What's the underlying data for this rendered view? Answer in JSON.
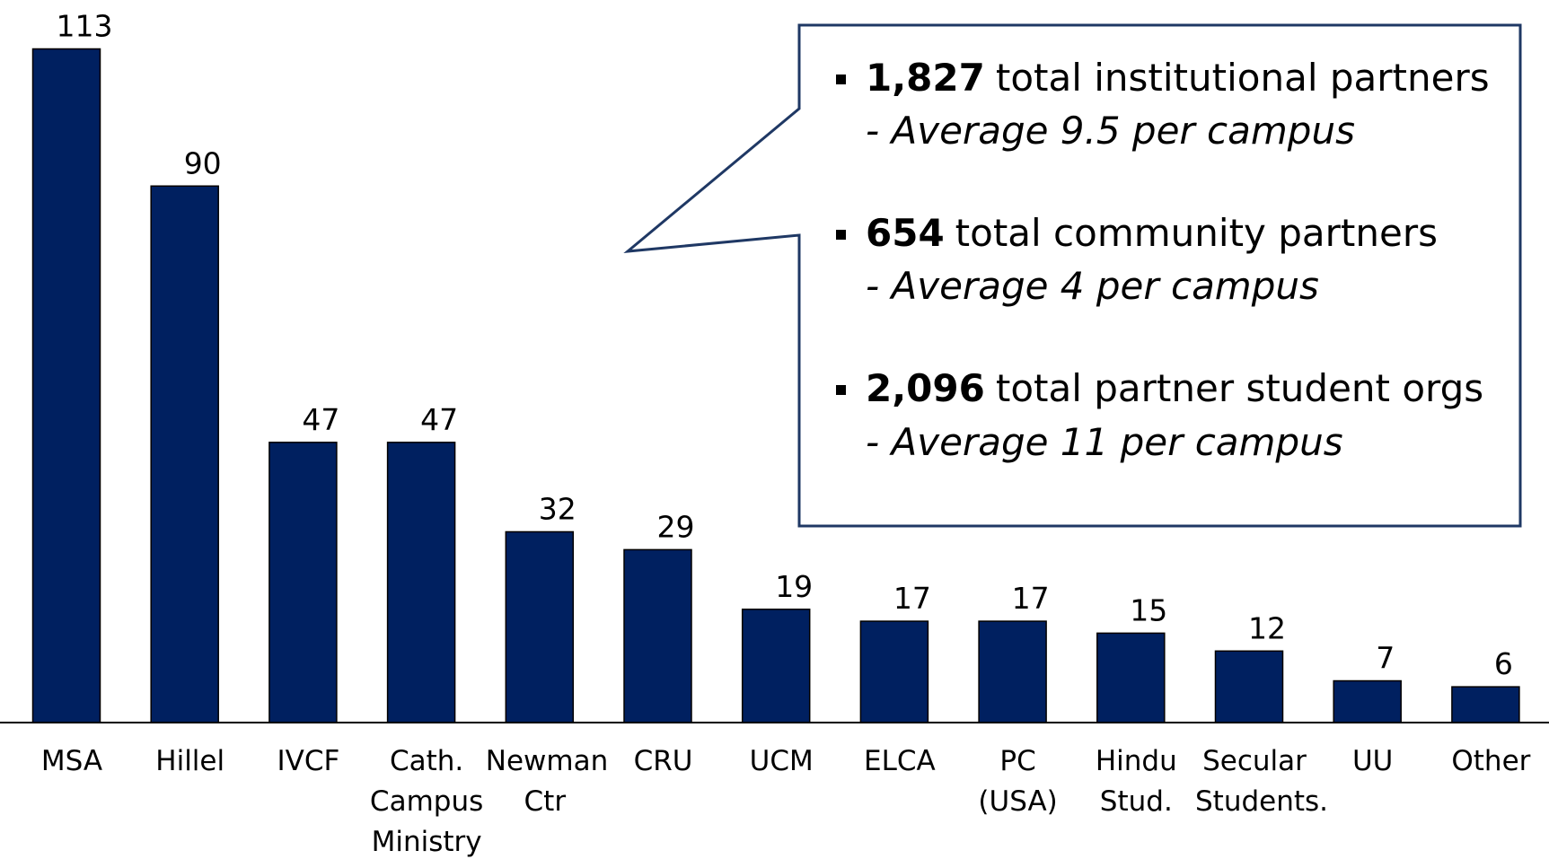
{
  "chart_data": {
    "type": "bar",
    "categories": [
      "MSA",
      "Hillel",
      "IVCF",
      "Cath.\nCampus\nMinistry",
      "Newman\nCtr",
      "CRU",
      "UCM",
      "ELCA",
      "PC\n(USA)",
      "Hindu\nStud.",
      "Secular\nStudents.",
      "UU",
      "Other"
    ],
    "values": [
      113,
      90,
      47,
      47,
      32,
      29,
      19,
      17,
      17,
      15,
      12,
      7,
      6
    ],
    "color": "#002060",
    "ylim": [
      0,
      120
    ],
    "annotations": [
      {
        "bold": "1,827",
        "text": "total institutional partners",
        "sub": "- Average 9.5 per campus"
      },
      {
        "bold": "654",
        "text": "total community partners",
        "sub": "- Average 4 per campus"
      },
      {
        "bold": "2,096",
        "text": "total partner student orgs",
        "sub": "- Average 11 per campus"
      }
    ]
  }
}
